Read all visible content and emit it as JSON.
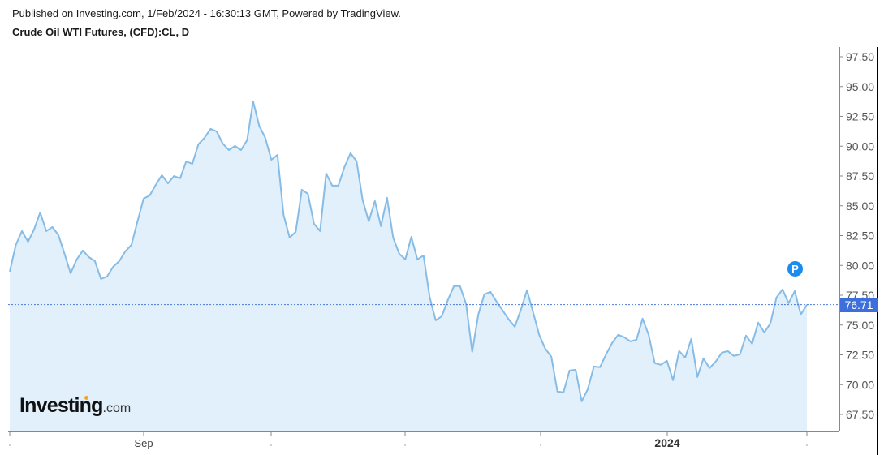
{
  "header": {
    "published": "Published on Investing.com, 1/Feb/2024 - 16:30:13 GMT, Powered by TradingView.",
    "title": "Crude Oil WTI Futures, (CFD):CL, D"
  },
  "logo": {
    "main": "Investing",
    "suffix": ".com"
  },
  "last_price": {
    "label": "76.71",
    "value": 76.71
  },
  "marker": {
    "label": "P"
  },
  "colors": {
    "line": "#86bce6",
    "fill": "#e1f0fb",
    "price_tag": "#3d6fdb",
    "price_line": "#4a78d6",
    "marker": "#1a8cf0",
    "axis": "#888888"
  },
  "chart_data": {
    "type": "area",
    "title": "Crude Oil WTI Futures, (CFD):CL, D",
    "subtitle": "Published on Investing.com, 1/Feb/2024 - 16:30:13 GMT, Powered by TradingView.",
    "xlabel": "",
    "ylabel": "",
    "ylim": [
      66,
      98.5
    ],
    "y_ticks": [
      "97.50",
      "95.00",
      "92.50",
      "90.00",
      "87.50",
      "85.00",
      "82.50",
      "80.00",
      "77.50",
      "75.00",
      "72.50",
      "70.00",
      "67.50"
    ],
    "x_ticks": [
      {
        "label": "",
        "x": 12
      },
      {
        "label": "Sep",
        "x": 177
      },
      {
        "label": "",
        "x": 334
      },
      {
        "label": "",
        "x": 499
      },
      {
        "label": "",
        "x": 666
      },
      {
        "label": "2024",
        "x": 822
      },
      {
        "label": "",
        "x": 994
      }
    ],
    "grid": false,
    "legend": "none",
    "last_value": 76.71,
    "series": [
      {
        "name": "Crude Oil WTI Futures (CL) Close",
        "values": [
          79.48,
          81.72,
          82.88,
          81.99,
          83.02,
          84.44,
          82.88,
          83.22,
          82.54,
          80.98,
          79.34,
          80.5,
          81.25,
          80.7,
          80.36,
          78.87,
          79.07,
          79.89,
          80.36,
          81.18,
          81.72,
          83.7,
          85.6,
          85.87,
          86.76,
          87.57,
          86.89,
          87.5,
          87.3,
          88.73,
          88.52,
          90.16,
          90.7,
          91.45,
          91.24,
          90.22,
          89.68,
          90.02,
          89.68,
          90.5,
          93.76,
          91.72,
          90.7,
          88.86,
          89.27,
          84.24,
          82.34,
          82.81,
          86.35,
          86.01,
          83.49,
          82.88,
          87.71,
          86.69,
          86.69,
          88.25,
          89.41,
          88.73,
          85.46,
          83.7,
          85.4,
          83.29,
          85.67,
          82.34,
          80.98,
          80.5,
          82.4,
          80.5,
          80.84,
          77.37,
          75.4,
          75.74,
          77.1,
          78.26,
          78.26,
          76.76,
          72.75,
          75.88,
          77.58,
          77.78,
          76.96,
          76.22,
          75.47,
          74.86,
          76.28,
          77.92,
          76.08,
          74.18,
          73.02,
          72.34,
          69.42,
          69.35,
          71.18,
          71.25,
          68.6,
          69.62,
          71.52,
          71.46,
          72.54,
          73.5,
          74.18,
          73.97,
          73.63,
          73.77,
          75.54,
          74.18,
          71.8,
          71.66,
          72.0,
          70.37,
          72.82,
          72.27,
          73.84,
          70.64,
          72.2,
          71.39,
          71.93,
          72.68,
          72.82,
          72.41,
          72.54,
          74.11,
          73.43,
          75.2,
          74.38,
          75.13,
          77.3,
          77.98,
          76.83,
          77.85,
          75.88,
          76.71
        ]
      }
    ]
  }
}
